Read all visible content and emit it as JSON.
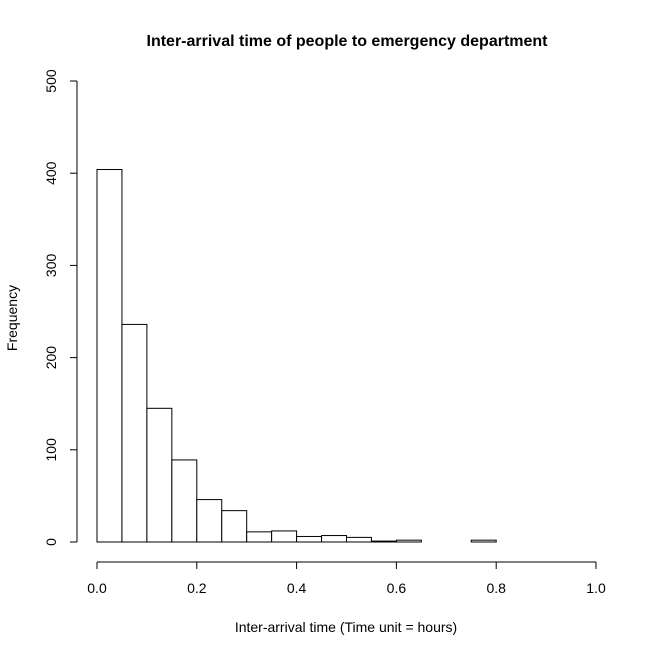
{
  "chart_data": {
    "type": "bar",
    "subtype": "histogram",
    "title": "Inter-arrival time of people to emergency department",
    "xlabel": "Inter-arrival time (Time unit = hours)",
    "ylabel": "Frequency",
    "xlim": [
      0,
      1.0
    ],
    "ylim": [
      0,
      500
    ],
    "bin_width": 0.05,
    "bins": [
      {
        "start": 0.0,
        "end": 0.05,
        "value": 404
      },
      {
        "start": 0.05,
        "end": 0.1,
        "value": 236
      },
      {
        "start": 0.1,
        "end": 0.15,
        "value": 145
      },
      {
        "start": 0.15,
        "end": 0.2,
        "value": 89
      },
      {
        "start": 0.2,
        "end": 0.25,
        "value": 46
      },
      {
        "start": 0.25,
        "end": 0.3,
        "value": 34
      },
      {
        "start": 0.3,
        "end": 0.35,
        "value": 11
      },
      {
        "start": 0.35,
        "end": 0.4,
        "value": 12
      },
      {
        "start": 0.4,
        "end": 0.45,
        "value": 6
      },
      {
        "start": 0.45,
        "end": 0.5,
        "value": 7
      },
      {
        "start": 0.5,
        "end": 0.55,
        "value": 5
      },
      {
        "start": 0.55,
        "end": 0.6,
        "value": 1
      },
      {
        "start": 0.6,
        "end": 0.65,
        "value": 2
      },
      {
        "start": 0.65,
        "end": 0.7,
        "value": 0
      },
      {
        "start": 0.7,
        "end": 0.75,
        "value": 0
      },
      {
        "start": 0.75,
        "end": 0.8,
        "value": 2
      }
    ],
    "x_ticks": [
      {
        "value": 0.0,
        "label": "0.0"
      },
      {
        "value": 0.2,
        "label": "0.2"
      },
      {
        "value": 0.4,
        "label": "0.4"
      },
      {
        "value": 0.6,
        "label": "0.6"
      },
      {
        "value": 0.8,
        "label": "0.8"
      },
      {
        "value": 1.0,
        "label": "1.0"
      }
    ],
    "y_ticks": [
      {
        "value": 0,
        "label": "0"
      },
      {
        "value": 100,
        "label": "100"
      },
      {
        "value": 200,
        "label": "200"
      },
      {
        "value": 300,
        "label": "300"
      },
      {
        "value": 400,
        "label": "400"
      },
      {
        "value": 500,
        "label": "500"
      }
    ],
    "grid": false,
    "colors": {
      "bar_fill": "#ffffff",
      "bar_stroke": "#000000",
      "axis": "#000000",
      "background": "#ffffff"
    }
  }
}
